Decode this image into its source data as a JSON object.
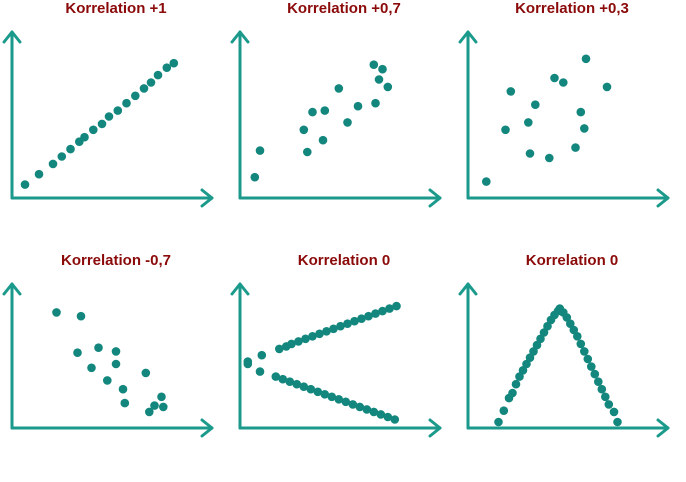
{
  "colors": {
    "axis": "#1b9a8c",
    "point": "#13877d",
    "title": "#8b0a0a"
  },
  "chart_data": [
    {
      "type": "scatter",
      "title": "Korrelation +1",
      "xlim": [
        0,
        10
      ],
      "ylim": [
        0,
        10
      ],
      "points": [
        [
          0.4,
          0.5
        ],
        [
          1.2,
          1.2
        ],
        [
          2.0,
          1.9
        ],
        [
          2.5,
          2.4
        ],
        [
          3.0,
          2.9
        ],
        [
          3.5,
          3.4
        ],
        [
          3.8,
          3.7
        ],
        [
          4.3,
          4.2
        ],
        [
          4.8,
          4.6
        ],
        [
          5.2,
          5.1
        ],
        [
          5.7,
          5.5
        ],
        [
          6.2,
          6.0
        ],
        [
          6.7,
          6.5
        ],
        [
          7.2,
          7.0
        ],
        [
          7.6,
          7.4
        ],
        [
          8.0,
          7.9
        ],
        [
          8.5,
          8.4
        ],
        [
          8.9,
          8.7
        ]
      ]
    },
    {
      "type": "scatter",
      "title": "Korrelation +0,7",
      "xlim": [
        0,
        10
      ],
      "ylim": [
        0,
        10
      ],
      "points": [
        [
          0.5,
          1.0
        ],
        [
          0.8,
          2.8
        ],
        [
          3.3,
          4.2
        ],
        [
          3.8,
          5.4
        ],
        [
          4.5,
          5.5
        ],
        [
          3.5,
          2.7
        ],
        [
          4.4,
          3.5
        ],
        [
          5.8,
          4.7
        ],
        [
          6.4,
          5.8
        ],
        [
          5.3,
          7.0
        ],
        [
          7.3,
          8.6
        ],
        [
          7.8,
          8.3
        ],
        [
          7.6,
          7.6
        ],
        [
          8.1,
          7.1
        ],
        [
          7.4,
          6.0
        ]
      ]
    },
    {
      "type": "scatter",
      "title": "Korrelation +0,3",
      "xlim": [
        0,
        10
      ],
      "ylim": [
        0,
        10
      ],
      "points": [
        [
          0.7,
          0.7
        ],
        [
          1.8,
          4.2
        ],
        [
          2.1,
          6.8
        ],
        [
          3.1,
          4.7
        ],
        [
          3.2,
          2.6
        ],
        [
          3.5,
          5.9
        ],
        [
          4.3,
          2.3
        ],
        [
          4.6,
          7.7
        ],
        [
          5.1,
          7.4
        ],
        [
          5.8,
          3.0
        ],
        [
          6.1,
          5.4
        ],
        [
          6.3,
          4.3
        ],
        [
          6.4,
          9.0
        ],
        [
          7.6,
          7.1
        ]
      ]
    },
    {
      "type": "scatter",
      "title": "Korrelation -0,7",
      "xlim": [
        0,
        10
      ],
      "ylim": [
        0,
        10
      ],
      "points": [
        [
          2.2,
          8.7
        ],
        [
          3.6,
          8.4
        ],
        [
          3.4,
          5.5
        ],
        [
          4.2,
          4.3
        ],
        [
          4.6,
          5.9
        ],
        [
          5.6,
          5.6
        ],
        [
          5.6,
          4.6
        ],
        [
          5.1,
          3.3
        ],
        [
          6.0,
          2.6
        ],
        [
          6.1,
          1.5
        ],
        [
          7.3,
          3.9
        ],
        [
          7.5,
          0.8
        ],
        [
          7.8,
          1.3
        ],
        [
          8.3,
          1.2
        ],
        [
          8.2,
          2.0
        ]
      ]
    },
    {
      "type": "scatter",
      "title": "Korrelation 0",
      "xlim": [
        0,
        10
      ],
      "ylim": [
        0,
        10
      ],
      "points": [
        [
          0.1,
          4.6
        ],
        [
          0.1,
          4.8
        ],
        [
          0.9,
          5.3
        ],
        [
          1.9,
          5.8
        ],
        [
          2.3,
          6.0
        ],
        [
          2.6,
          6.2
        ],
        [
          3.0,
          6.4
        ],
        [
          3.4,
          6.6
        ],
        [
          3.8,
          6.8
        ],
        [
          4.2,
          7.0
        ],
        [
          4.6,
          7.2
        ],
        [
          5.0,
          7.4
        ],
        [
          5.4,
          7.6
        ],
        [
          5.8,
          7.8
        ],
        [
          6.2,
          8.0
        ],
        [
          6.6,
          8.2
        ],
        [
          7.0,
          8.4
        ],
        [
          7.4,
          8.6
        ],
        [
          7.8,
          8.8
        ],
        [
          8.2,
          9.0
        ],
        [
          8.6,
          9.2
        ],
        [
          0.8,
          4.0
        ],
        [
          1.7,
          3.6
        ],
        [
          2.1,
          3.4
        ],
        [
          2.5,
          3.2
        ],
        [
          2.9,
          3.0
        ],
        [
          3.3,
          2.8
        ],
        [
          3.7,
          2.6
        ],
        [
          4.1,
          2.4
        ],
        [
          4.5,
          2.2
        ],
        [
          4.9,
          2.0
        ],
        [
          5.3,
          1.8
        ],
        [
          5.7,
          1.6
        ],
        [
          6.1,
          1.4
        ],
        [
          6.5,
          1.2
        ],
        [
          6.9,
          1.0
        ],
        [
          7.3,
          0.8
        ],
        [
          7.7,
          0.6
        ],
        [
          8.1,
          0.4
        ],
        [
          8.5,
          0.2
        ]
      ]
    },
    {
      "type": "scatter",
      "title": "Korrelation 0",
      "xlim": [
        0,
        10
      ],
      "ylim": [
        0,
        10
      ],
      "points": [
        [
          1.4,
          0.0
        ],
        [
          1.7,
          0.9
        ],
        [
          2.0,
          1.9
        ],
        [
          2.2,
          2.3
        ],
        [
          2.4,
          3.0
        ],
        [
          2.6,
          3.6
        ],
        [
          2.8,
          4.1
        ],
        [
          3.0,
          4.6
        ],
        [
          3.2,
          5.1
        ],
        [
          3.4,
          5.6
        ],
        [
          3.6,
          6.1
        ],
        [
          3.8,
          6.6
        ],
        [
          4.0,
          7.1
        ],
        [
          4.2,
          7.6
        ],
        [
          4.4,
          8.1
        ],
        [
          4.6,
          8.5
        ],
        [
          4.8,
          8.8
        ],
        [
          4.9,
          9.0
        ],
        [
          5.1,
          8.7
        ],
        [
          5.3,
          8.3
        ],
        [
          5.5,
          7.8
        ],
        [
          5.7,
          7.3
        ],
        [
          5.9,
          6.8
        ],
        [
          6.1,
          6.2
        ],
        [
          6.3,
          5.6
        ],
        [
          6.5,
          5.0
        ],
        [
          6.7,
          4.4
        ],
        [
          6.9,
          3.8
        ],
        [
          7.1,
          3.2
        ],
        [
          7.3,
          2.6
        ],
        [
          7.5,
          2.0
        ],
        [
          7.7,
          1.4
        ],
        [
          8.0,
          0.8
        ],
        [
          8.2,
          0.0
        ]
      ]
    }
  ]
}
